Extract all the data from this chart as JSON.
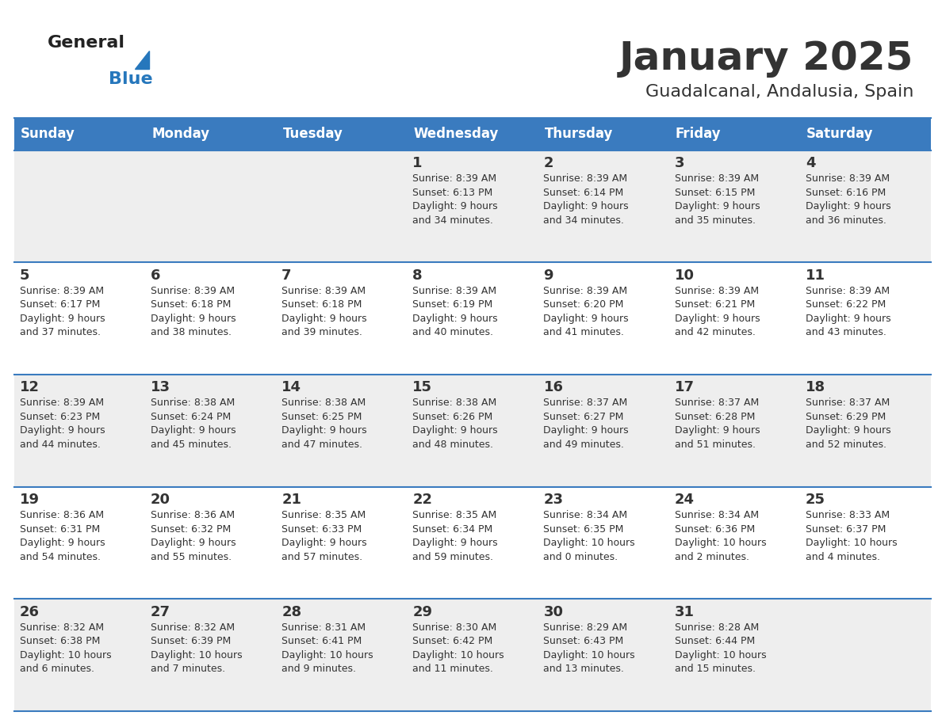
{
  "title": "January 2025",
  "subtitle": "Guadalcanal, Andalusia, Spain",
  "header_color": "#3a7bbf",
  "header_text_color": "#ffffff",
  "row_color_odd": "#eeeeee",
  "row_color_even": "#ffffff",
  "text_color": "#333333",
  "border_color": "#3a7bbf",
  "days_of_week": [
    "Sunday",
    "Monday",
    "Tuesday",
    "Wednesday",
    "Thursday",
    "Friday",
    "Saturday"
  ],
  "calendar": [
    [
      {
        "day": "",
        "info": ""
      },
      {
        "day": "",
        "info": ""
      },
      {
        "day": "",
        "info": ""
      },
      {
        "day": "1",
        "info": "Sunrise: 8:39 AM\nSunset: 6:13 PM\nDaylight: 9 hours\nand 34 minutes."
      },
      {
        "day": "2",
        "info": "Sunrise: 8:39 AM\nSunset: 6:14 PM\nDaylight: 9 hours\nand 34 minutes."
      },
      {
        "day": "3",
        "info": "Sunrise: 8:39 AM\nSunset: 6:15 PM\nDaylight: 9 hours\nand 35 minutes."
      },
      {
        "day": "4",
        "info": "Sunrise: 8:39 AM\nSunset: 6:16 PM\nDaylight: 9 hours\nand 36 minutes."
      }
    ],
    [
      {
        "day": "5",
        "info": "Sunrise: 8:39 AM\nSunset: 6:17 PM\nDaylight: 9 hours\nand 37 minutes."
      },
      {
        "day": "6",
        "info": "Sunrise: 8:39 AM\nSunset: 6:18 PM\nDaylight: 9 hours\nand 38 minutes."
      },
      {
        "day": "7",
        "info": "Sunrise: 8:39 AM\nSunset: 6:18 PM\nDaylight: 9 hours\nand 39 minutes."
      },
      {
        "day": "8",
        "info": "Sunrise: 8:39 AM\nSunset: 6:19 PM\nDaylight: 9 hours\nand 40 minutes."
      },
      {
        "day": "9",
        "info": "Sunrise: 8:39 AM\nSunset: 6:20 PM\nDaylight: 9 hours\nand 41 minutes."
      },
      {
        "day": "10",
        "info": "Sunrise: 8:39 AM\nSunset: 6:21 PM\nDaylight: 9 hours\nand 42 minutes."
      },
      {
        "day": "11",
        "info": "Sunrise: 8:39 AM\nSunset: 6:22 PM\nDaylight: 9 hours\nand 43 minutes."
      }
    ],
    [
      {
        "day": "12",
        "info": "Sunrise: 8:39 AM\nSunset: 6:23 PM\nDaylight: 9 hours\nand 44 minutes."
      },
      {
        "day": "13",
        "info": "Sunrise: 8:38 AM\nSunset: 6:24 PM\nDaylight: 9 hours\nand 45 minutes."
      },
      {
        "day": "14",
        "info": "Sunrise: 8:38 AM\nSunset: 6:25 PM\nDaylight: 9 hours\nand 47 minutes."
      },
      {
        "day": "15",
        "info": "Sunrise: 8:38 AM\nSunset: 6:26 PM\nDaylight: 9 hours\nand 48 minutes."
      },
      {
        "day": "16",
        "info": "Sunrise: 8:37 AM\nSunset: 6:27 PM\nDaylight: 9 hours\nand 49 minutes."
      },
      {
        "day": "17",
        "info": "Sunrise: 8:37 AM\nSunset: 6:28 PM\nDaylight: 9 hours\nand 51 minutes."
      },
      {
        "day": "18",
        "info": "Sunrise: 8:37 AM\nSunset: 6:29 PM\nDaylight: 9 hours\nand 52 minutes."
      }
    ],
    [
      {
        "day": "19",
        "info": "Sunrise: 8:36 AM\nSunset: 6:31 PM\nDaylight: 9 hours\nand 54 minutes."
      },
      {
        "day": "20",
        "info": "Sunrise: 8:36 AM\nSunset: 6:32 PM\nDaylight: 9 hours\nand 55 minutes."
      },
      {
        "day": "21",
        "info": "Sunrise: 8:35 AM\nSunset: 6:33 PM\nDaylight: 9 hours\nand 57 minutes."
      },
      {
        "day": "22",
        "info": "Sunrise: 8:35 AM\nSunset: 6:34 PM\nDaylight: 9 hours\nand 59 minutes."
      },
      {
        "day": "23",
        "info": "Sunrise: 8:34 AM\nSunset: 6:35 PM\nDaylight: 10 hours\nand 0 minutes."
      },
      {
        "day": "24",
        "info": "Sunrise: 8:34 AM\nSunset: 6:36 PM\nDaylight: 10 hours\nand 2 minutes."
      },
      {
        "day": "25",
        "info": "Sunrise: 8:33 AM\nSunset: 6:37 PM\nDaylight: 10 hours\nand 4 minutes."
      }
    ],
    [
      {
        "day": "26",
        "info": "Sunrise: 8:32 AM\nSunset: 6:38 PM\nDaylight: 10 hours\nand 6 minutes."
      },
      {
        "day": "27",
        "info": "Sunrise: 8:32 AM\nSunset: 6:39 PM\nDaylight: 10 hours\nand 7 minutes."
      },
      {
        "day": "28",
        "info": "Sunrise: 8:31 AM\nSunset: 6:41 PM\nDaylight: 10 hours\nand 9 minutes."
      },
      {
        "day": "29",
        "info": "Sunrise: 8:30 AM\nSunset: 6:42 PM\nDaylight: 10 hours\nand 11 minutes."
      },
      {
        "day": "30",
        "info": "Sunrise: 8:29 AM\nSunset: 6:43 PM\nDaylight: 10 hours\nand 13 minutes."
      },
      {
        "day": "31",
        "info": "Sunrise: 8:28 AM\nSunset: 6:44 PM\nDaylight: 10 hours\nand 15 minutes."
      },
      {
        "day": "",
        "info": ""
      }
    ]
  ],
  "logo_color_general": "#222222",
  "logo_color_blue": "#2677bc",
  "title_fontsize": 36,
  "subtitle_fontsize": 16,
  "header_fontsize": 12,
  "day_num_fontsize": 13,
  "info_fontsize": 9,
  "figure_width": 11.88,
  "figure_height": 9.18,
  "dpi": 100
}
